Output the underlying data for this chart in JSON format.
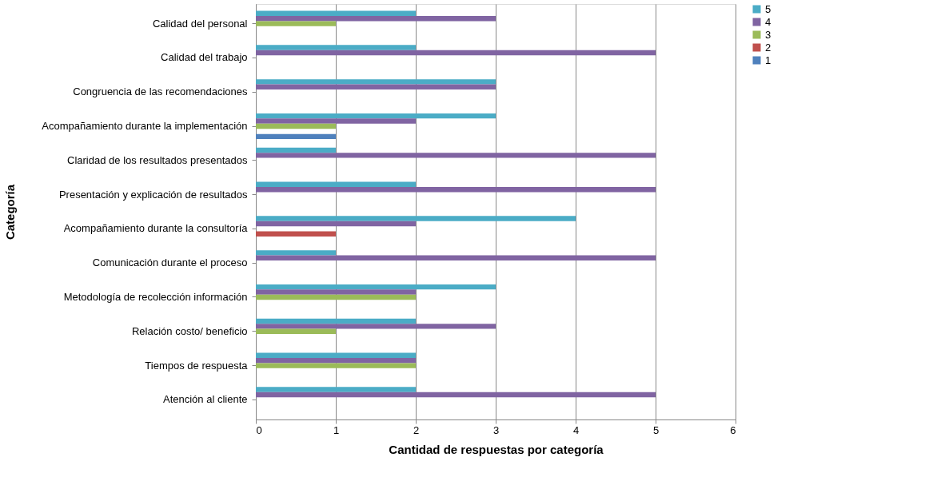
{
  "chart_data": {
    "type": "bar",
    "orientation": "horizontal",
    "xlabel": "Cantidad de respuestas por categoría",
    "ylabel": "Categoría",
    "categories": [
      "Calidad del personal",
      "Calidad del trabajo",
      "Congruencia de las recomendaciones",
      "Acompañamiento durante la implementación",
      "Claridad de los resultados presentados",
      "Presentación y explicación de resultados",
      "Acompañamiento durante la consultoría",
      "Comunicación durante el proceso",
      "Metodología de recolección información",
      "Relación costo/ beneficio",
      "Tiempos de respuesta",
      "Atención al cliente"
    ],
    "series": [
      {
        "name": "5",
        "color": "#4bacc6",
        "values": [
          2,
          2,
          3,
          3,
          1,
          2,
          4,
          1,
          3,
          2,
          2,
          2
        ]
      },
      {
        "name": "4",
        "color": "#8064a2",
        "values": [
          3,
          5,
          3,
          2,
          5,
          5,
          2,
          5,
          2,
          3,
          2,
          5
        ]
      },
      {
        "name": "3",
        "color": "#9bbb59",
        "values": [
          1,
          0,
          0,
          1,
          0,
          0,
          0,
          0,
          2,
          1,
          2,
          0
        ]
      },
      {
        "name": "2",
        "color": "#c0504d",
        "values": [
          0,
          0,
          0,
          0,
          0,
          0,
          1,
          0,
          0,
          0,
          0,
          0
        ]
      },
      {
        "name": "1",
        "color": "#4f81bd",
        "values": [
          0,
          0,
          0,
          1,
          0,
          0,
          0,
          0,
          0,
          0,
          0,
          0
        ]
      }
    ],
    "xlim": [
      0,
      6
    ],
    "xticks": [
      0,
      1,
      2,
      3,
      4,
      5,
      6
    ],
    "grid": "x",
    "legend": "right"
  }
}
